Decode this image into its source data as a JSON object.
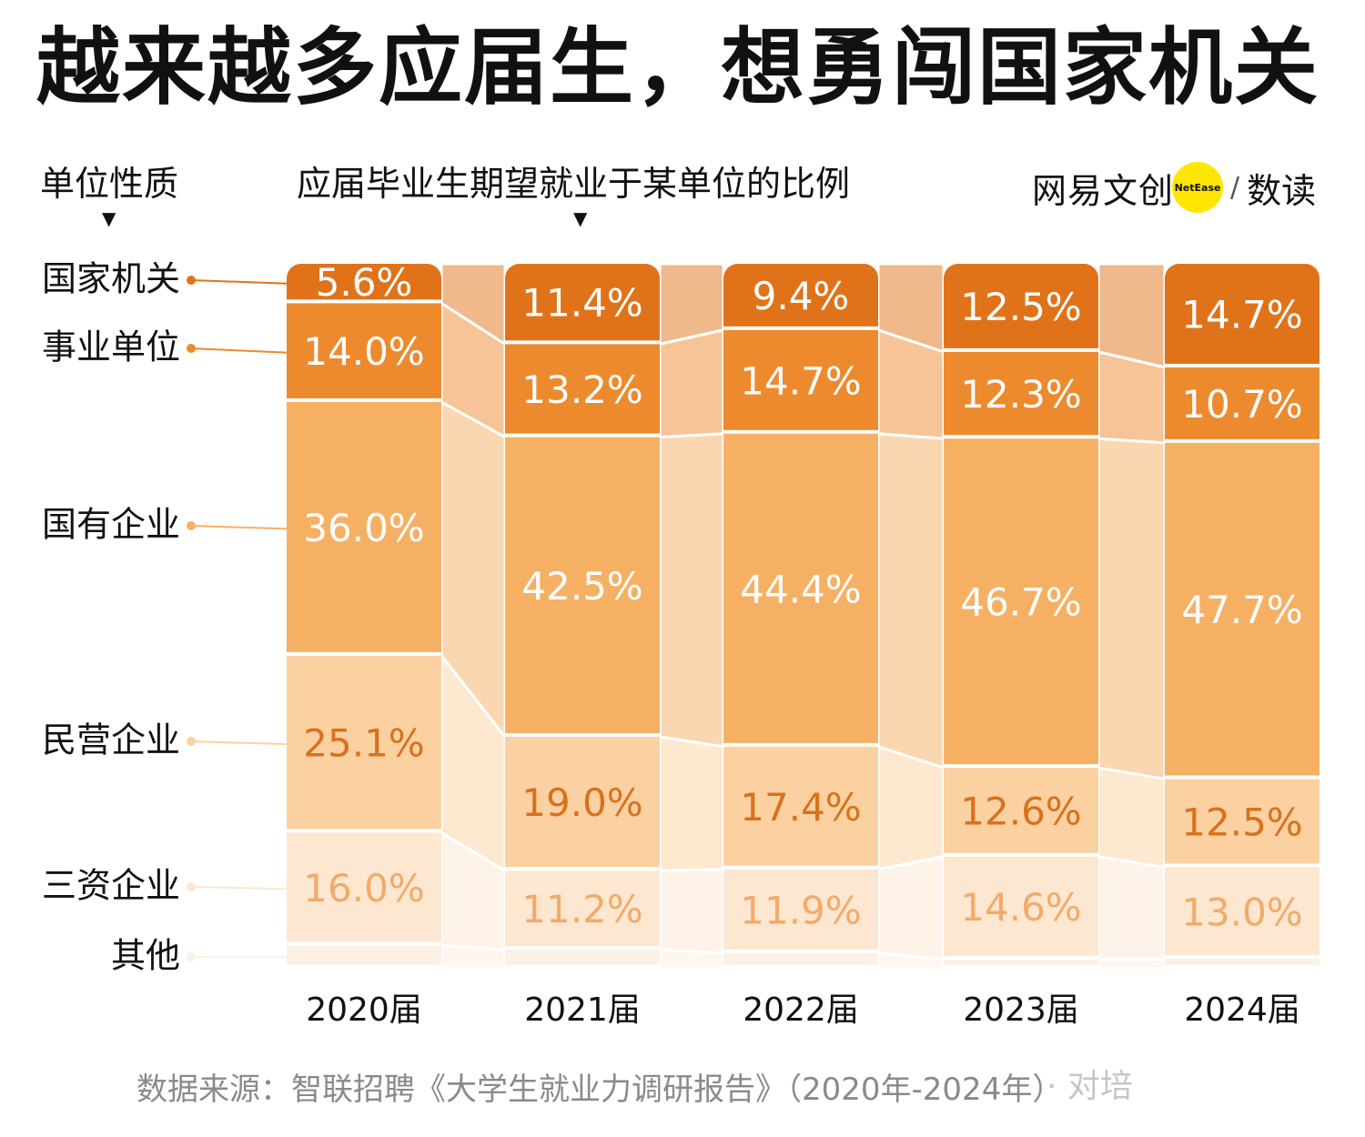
{
  "title": "越来越多应届生，想勇闯国家机关",
  "row_header": "单位性质",
  "column_header": "应届毕业生期望就业于某单位的比例",
  "arrow_glyph": "▼",
  "brand": {
    "name": "网易文创",
    "dot_text": "NetEase",
    "slash": "/",
    "sub": "数读"
  },
  "source": "数据来源：智联招聘《大学生就业力调研报告》（2020年-2024年）",
  "watermark": "· 对培",
  "colors": {
    "国家机关": "#e0731a",
    "事业单位": "#ed8a2e",
    "国有企业": "#f6b064",
    "民营企业": "#fbd1a2",
    "三资企业": "#fde7d1",
    "其他": "#fdf0e4",
    "label_dark": "#ffffff",
    "label_mid": "#d9711c",
    "label_light": "#f2aa6a"
  },
  "chart_data": {
    "type": "stacked_bar",
    "categories": [
      "2020届",
      "2021届",
      "2022届",
      "2023届",
      "2024届"
    ],
    "ylim": [
      0,
      100
    ],
    "series": [
      {
        "name": "国家机关",
        "values": [
          5.6,
          11.4,
          9.4,
          12.5,
          14.7
        ],
        "labels": [
          "5.6%",
          "11.4%",
          "9.4%",
          "12.5%",
          "14.7%"
        ]
      },
      {
        "name": "事业单位",
        "values": [
          14.0,
          13.2,
          14.7,
          12.3,
          10.7
        ],
        "labels": [
          "14.0%",
          "13.2%",
          "14.7%",
          "12.3%",
          "10.7%"
        ]
      },
      {
        "name": "国有企业",
        "values": [
          36.0,
          42.5,
          44.4,
          46.7,
          47.7
        ],
        "labels": [
          "36.0%",
          "42.5%",
          "44.4%",
          "46.7%",
          "47.7%"
        ]
      },
      {
        "name": "民营企业",
        "values": [
          25.1,
          19.0,
          17.4,
          12.6,
          12.5
        ],
        "labels": [
          "25.1%",
          "19.0%",
          "17.4%",
          "12.6%",
          "12.5%"
        ]
      },
      {
        "name": "三资企业",
        "values": [
          16.0,
          11.2,
          11.9,
          14.6,
          13.0
        ],
        "labels": [
          "16.0%",
          "11.2%",
          "11.9%",
          "14.6%",
          "13.0%"
        ]
      },
      {
        "name": "其他",
        "values": [
          3.3,
          2.7,
          2.2,
          1.3,
          1.4
        ],
        "labels": [
          "",
          "",
          "",
          "",
          ""
        ]
      }
    ]
  }
}
